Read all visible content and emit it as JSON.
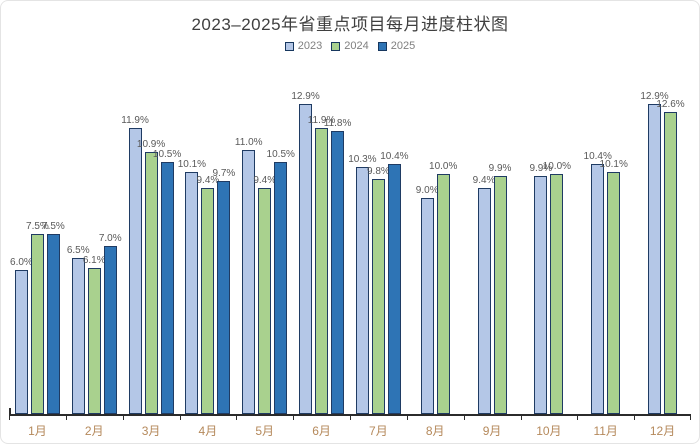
{
  "title": "2023–2025年省重点项目每月进度柱状图",
  "chart_data": {
    "type": "bar",
    "title": "2023–2025年省重点项目每月进度柱状图",
    "categories": [
      "1月",
      "2月",
      "3月",
      "4月",
      "5月",
      "6月",
      "7月",
      "8月",
      "9月",
      "10月",
      "11月",
      "12月"
    ],
    "series": [
      {
        "name": "2023",
        "color": "#b4c7e7",
        "values": [
          6.0,
          6.5,
          11.9,
          10.1,
          11.0,
          12.9,
          10.3,
          9.0,
          9.4,
          9.9,
          10.4,
          12.9
        ]
      },
      {
        "name": "2024",
        "color": "#a9d18e",
        "values": [
          7.5,
          6.1,
          10.9,
          9.4,
          9.4,
          11.9,
          9.8,
          10.0,
          9.9,
          10.0,
          10.1,
          12.6
        ]
      },
      {
        "name": "2025",
        "color": "#2e74b5",
        "values": [
          7.5,
          7.0,
          10.5,
          9.7,
          10.5,
          11.8,
          10.4,
          null,
          null,
          null,
          null,
          null
        ]
      }
    ],
    "value_suffix": "%",
    "xlabel": "",
    "ylabel": "",
    "ylim": [
      0,
      14
    ],
    "grid": false,
    "y_axis_visible": false,
    "data_labels": true,
    "legend_position": "top"
  },
  "colors": {
    "title_text": "#3f3f3f",
    "legend_text": "#7f7f7f",
    "data_label_text": "#595959",
    "axis_line": "#2b2b2b",
    "month_label_text": "#b5895b",
    "bar_border": "#1f3b63",
    "series_2023": "#b4c7e7",
    "series_2024": "#a9d18e",
    "series_2025": "#2e74b5",
    "background": "#ffffff",
    "frame_border": "#e4e4e4"
  }
}
